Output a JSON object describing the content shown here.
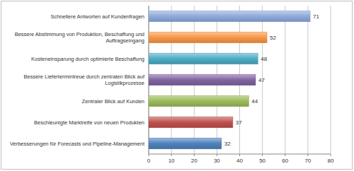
{
  "chart_data": {
    "type": "bar",
    "orientation": "horizontal",
    "categories": [
      "Schnellere Antworten auf Kundenfragen",
      "Bessere Abstimmung von Produktion, Beschaffung und Auftragseingang",
      "Kosteneinsparung durch optimierte Beschaffung",
      "Bessere Liefertermintreue durch zentralen Blick auf Logistikprozesse",
      "Zentraler Blick auf Kunden",
      "Beschleunigte Marktreife von neuen Produkten",
      "Verbesserungen für Forecasts und Pipeline-Management"
    ],
    "values": [
      71,
      52,
      48,
      47,
      44,
      37,
      32
    ],
    "colors": [
      "#8eaadb",
      "#f79646",
      "#4bacc6",
      "#8064a2",
      "#9bbb59",
      "#c0504d",
      "#4f81bd"
    ],
    "xlim": [
      0,
      80
    ],
    "xticks": [
      0,
      10,
      20,
      30,
      40,
      50,
      60,
      70,
      80
    ],
    "grid": true,
    "data_labels": true
  }
}
